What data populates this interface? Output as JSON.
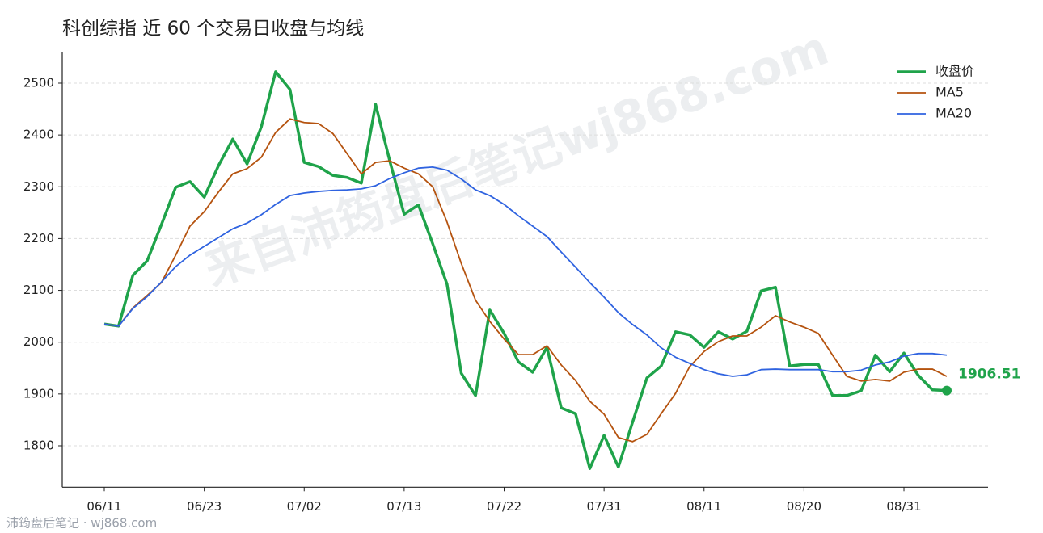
{
  "chart_data": {
    "type": "line",
    "title": "科创综指 近 60 个交易日收盘与均线",
    "watermark": "来自沛筠盘后笔记wj868.com",
    "footer": "沛筠盘后笔记 · wj868.com",
    "categories": [
      "06/11",
      null,
      null,
      null,
      null,
      null,
      null,
      "06/23",
      null,
      null,
      null,
      null,
      null,
      null,
      "07/02",
      null,
      null,
      null,
      null,
      null,
      null,
      "07/13",
      null,
      null,
      null,
      null,
      null,
      null,
      "07/22",
      null,
      null,
      null,
      null,
      null,
      null,
      "07/31",
      null,
      null,
      null,
      null,
      null,
      null,
      "08/11",
      null,
      null,
      null,
      null,
      null,
      null,
      "08/20",
      null,
      null,
      null,
      null,
      null,
      null,
      "08/31",
      null,
      null,
      null
    ],
    "series": [
      {
        "name": "收盘价",
        "color": "#1fa34a",
        "values": [
          2035,
          2031,
          2129,
          2157,
          2227,
          2299,
          2310,
          2280,
          2341,
          2392,
          2344,
          2416,
          2522,
          2488,
          2347,
          2339,
          2322,
          2318,
          2307,
          2459,
          2349,
          2247,
          2265,
          2190,
          2112,
          1940,
          1897,
          2062,
          2017,
          1962,
          1942,
          1990,
          1873,
          1862,
          1756,
          1820,
          1759,
          1846,
          1931,
          1954,
          2020,
          2014,
          1990,
          2020,
          2006,
          2021,
          2099,
          2106,
          1954,
          1957,
          1957,
          1897,
          1897,
          1906,
          1975,
          1943,
          1979,
          1936,
          1908,
          1906.51
        ]
      },
      {
        "name": "MA5",
        "color": "#b5530f",
        "values": [
          2035,
          2031,
          2066,
          2090,
          2115,
          2168,
          2224,
          2252,
          2290,
          2325,
          2335,
          2357,
          2405,
          2431,
          2424,
          2422,
          2403,
          2364,
          2325,
          2347,
          2350,
          2336,
          2325,
          2300,
          2232,
          2152,
          2081,
          2040,
          2006,
          1976,
          1976,
          1993,
          1956,
          1926,
          1886,
          1861,
          1816,
          1808,
          1822,
          1862,
          1901,
          1953,
          1982,
          2001,
          2012,
          2012,
          2029,
          2051,
          2039,
          2029,
          2017,
          1975,
          1934,
          1925,
          1928,
          1925,
          1942,
          1948,
          1948,
          1934
        ]
      },
      {
        "name": "MA20",
        "color": "#2f63e0",
        "values": [
          2035,
          2031,
          2065,
          2088,
          2116,
          2146,
          2168,
          2185,
          2202,
          2219,
          2230,
          2246,
          2266,
          2283,
          2288,
          2291,
          2293,
          2294,
          2296,
          2302,
          2316,
          2327,
          2336,
          2338,
          2332,
          2315,
          2294,
          2283,
          2266,
          2244,
          2224,
          2204,
          2174,
          2145,
          2115,
          2087,
          2057,
          2034,
          2014,
          1989,
          1971,
          1959,
          1947,
          1939,
          1934,
          1937,
          1947,
          1948,
          1947,
          1947,
          1947,
          1943,
          1943,
          1946,
          1956,
          1962,
          1973,
          1978,
          1978,
          1975
        ]
      }
    ],
    "ylim": [
      1720,
      2560
    ],
    "yticks": [
      1800,
      1900,
      2000,
      2100,
      2200,
      2300,
      2400,
      2500
    ],
    "grid": true,
    "legend": "upper-right"
  }
}
